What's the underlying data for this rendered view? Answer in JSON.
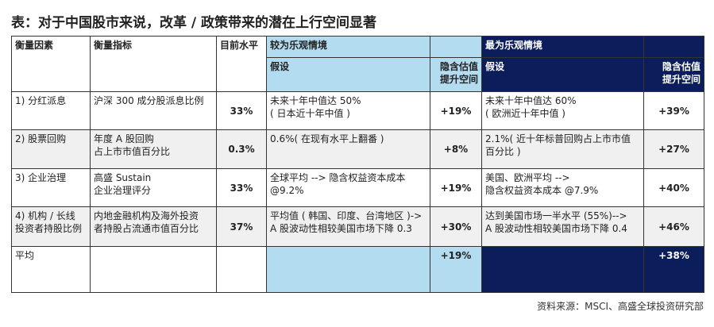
{
  "title": "表：对于中国股市来说，改革 / 政策带来的潜在上行空间显著",
  "table": {
    "header_top": [
      "衡量因素",
      "衡量指标",
      "目前水平",
      "较为乐观情境",
      "最为乐观情境"
    ],
    "header_sub": [
      "假设",
      "隐含估值\n提升空间",
      "假设",
      "隐含估值\n提升空间"
    ],
    "rows": [
      [
        "1) 分红派息",
        "沪深 300 成分股派息比例",
        "33%",
        "未来十年中值达 50%\n( 日本近十年中值 )",
        "+19%",
        "未来十年中值达 60%\n( 欧洲近十年中值 )",
        "+39%"
      ],
      [
        "2) 股票回购",
        "年度 A 股回购\n占上市市值百分比",
        "0.3%",
        "0.6%( 在现有水平上翻番 )",
        "+8%",
        "2.1%( 近十年标普回购占上市市值\n百分比 )",
        "+27%"
      ],
      [
        "3) 企业治理",
        "高盛 Sustain\n企业治理评分",
        "33%",
        "全球平均 --> 隐含权益资本成本\n@9.2%",
        "+19%",
        "美国、欧洲平均 -->\n隐含权益资本成本 @7.9%",
        "+40%"
      ],
      [
        "4) 机构 / 长线\n投资者持股比例",
        "内地金融机构及海外投资\n者持股占流通市值百分比",
        "37%",
        "平均值 ( 韩国、印度、台湾地区 )->\nA 股波动性相较美国市场下降 0.3",
        "+30%",
        "达到美国市场一半水平 (55%)-->\nA 股波动性相较美国市场下降 0.4",
        "+46%"
      ]
    ],
    "average": {
      "label": "平均",
      "moderate": "+19%",
      "max": "+38%"
    }
  },
  "source": "资料来源：MSCI、高盛全球投资研究部"
}
